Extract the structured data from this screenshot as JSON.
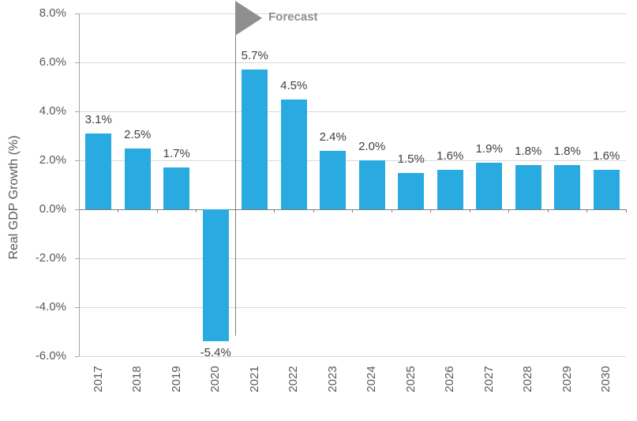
{
  "chart_data": {
    "type": "bar",
    "title": "",
    "ylabel": "Real GDP Growth (%)",
    "categories": [
      "2017",
      "2018",
      "2019",
      "2020",
      "2021",
      "2022",
      "2023",
      "2024",
      "2025",
      "2026",
      "2027",
      "2028",
      "2029",
      "2030"
    ],
    "values": [
      3.1,
      2.5,
      1.7,
      -5.4,
      5.7,
      4.5,
      2.4,
      2.0,
      1.5,
      1.6,
      1.9,
      1.8,
      1.8,
      1.6
    ],
    "data_labels": [
      "3.1%",
      "2.5%",
      "1.7%",
      "-5.4%",
      "5.7%",
      "4.5%",
      "2.4%",
      "2.0%",
      "1.5%",
      "1.6%",
      "1.9%",
      "1.8%",
      "1.8%",
      "1.6%"
    ],
    "y_ticks": [
      {
        "value": 8,
        "label": "8.0%"
      },
      {
        "value": 6,
        "label": "6.0%"
      },
      {
        "value": 4,
        "label": "4.0%"
      },
      {
        "value": 2,
        "label": "2.0%"
      },
      {
        "value": 0,
        "label": "0.0%"
      },
      {
        "value": -2,
        "label": "-2.0%"
      },
      {
        "value": -4,
        "label": "-4.0%"
      },
      {
        "value": -6,
        "label": "-6.0%"
      }
    ],
    "ylim": [
      -6,
      8
    ],
    "grid": true,
    "legend": null,
    "annotation": {
      "label": "Forecast",
      "starts_before_category": "2021"
    },
    "colors": {
      "bar": "#29ABE2",
      "gridline": "#D9D9D9",
      "axis_line": "#A6A6A6",
      "zero_line": "#808080",
      "divider_line": "#808080",
      "forecast": "#8F8F8F",
      "tick_label": "#595959",
      "data_label": "#404040"
    }
  }
}
